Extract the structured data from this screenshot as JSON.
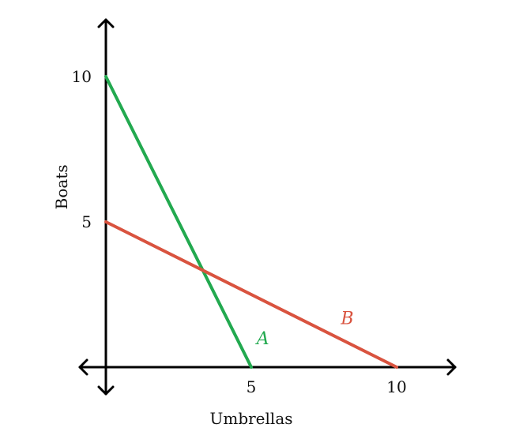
{
  "chart_data": {
    "type": "line",
    "xlabel": "Umbrellas",
    "ylabel": "Boats",
    "xlim": [
      -1,
      12
    ],
    "ylim": [
      -1,
      12
    ],
    "x_ticks": [
      5,
      10
    ],
    "y_ticks": [
      5,
      10
    ],
    "grid": false,
    "series": [
      {
        "name": "A",
        "color": "#22a94f",
        "points": [
          [
            0,
            10
          ],
          [
            5,
            0
          ]
        ]
      },
      {
        "name": "B",
        "color": "#d9533f",
        "points": [
          [
            0,
            5
          ],
          [
            10,
            0
          ]
        ]
      }
    ]
  }
}
